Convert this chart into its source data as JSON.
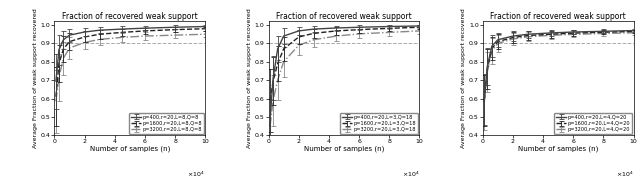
{
  "title": "Fraction of recovered weak support",
  "xlabel": "Number of samples (n)",
  "ylabel": "Average Fraction of weak support recovered",
  "ylim": [
    0.4,
    1.02
  ],
  "xlim": [
    0,
    100000.0
  ],
  "hline": 0.9,
  "xticks": [
    0,
    20000,
    40000,
    60000,
    80000,
    100000
  ],
  "yticks": [
    0.4,
    0.5,
    0.6,
    0.7,
    0.8,
    0.9,
    1.0
  ],
  "subplots": [
    {
      "legend": [
        "p=400,r=20,L=8,Q=8",
        "p=1600,r=20,L=8,Q=8",
        "p=3200,r=20,L=8,Q=8"
      ],
      "x": [
        1000,
        3000,
        6000,
        10000,
        20000,
        30000,
        45000,
        60000,
        80000,
        100000
      ],
      "curves": [
        {
          "y": [
            0.695,
            0.865,
            0.92,
            0.945,
            0.962,
            0.972,
            0.978,
            0.983,
            0.988,
            0.992
          ],
          "yerr": [
            0.15,
            0.08,
            0.05,
            0.035,
            0.022,
            0.018,
            0.015,
            0.012,
            0.01,
            0.009
          ],
          "style": "-",
          "color": "#444444",
          "lw": 1.0
        },
        {
          "y": [
            0.61,
            0.79,
            0.87,
            0.91,
            0.935,
            0.95,
            0.96,
            0.968,
            0.975,
            0.98
          ],
          "yerr": [
            0.16,
            0.1,
            0.07,
            0.048,
            0.03,
            0.024,
            0.02,
            0.016,
            0.013,
            0.011
          ],
          "style": "--",
          "color": "#222222",
          "lw": 1.0
        },
        {
          "y": [
            0.585,
            0.715,
            0.82,
            0.875,
            0.905,
            0.922,
            0.933,
            0.94,
            0.945,
            0.95
          ],
          "yerr": [
            0.17,
            0.13,
            0.09,
            0.058,
            0.038,
            0.03,
            0.024,
            0.02,
            0.017,
            0.015
          ],
          "style": "-.",
          "color": "#888888",
          "lw": 1.0
        }
      ]
    },
    {
      "legend": [
        "p=400,r=20,L=3,Q=18",
        "p=1600,r=20,L=3,Q=18",
        "p=3200,r=20,L=3,Q=18"
      ],
      "x": [
        1000,
        3000,
        6000,
        10000,
        20000,
        30000,
        45000,
        60000,
        80000,
        100000
      ],
      "curves": [
        {
          "y": [
            0.49,
            0.71,
            0.87,
            0.94,
            0.968,
            0.978,
            0.984,
            0.988,
            0.992,
            0.995
          ],
          "yerr": [
            0.16,
            0.12,
            0.07,
            0.045,
            0.022,
            0.016,
            0.013,
            0.01,
            0.009,
            0.007
          ],
          "style": "-",
          "color": "#444444",
          "lw": 1.0
        },
        {
          "y": [
            0.59,
            0.695,
            0.79,
            0.87,
            0.935,
            0.955,
            0.968,
            0.975,
            0.982,
            0.988
          ],
          "yerr": [
            0.17,
            0.13,
            0.095,
            0.065,
            0.038,
            0.026,
            0.02,
            0.016,
            0.013,
            0.011
          ],
          "style": "--",
          "color": "#222222",
          "lw": 1.0
        },
        {
          "y": [
            0.45,
            0.59,
            0.7,
            0.8,
            0.89,
            0.92,
            0.94,
            0.952,
            0.96,
            0.968
          ],
          "yerr": [
            0.15,
            0.14,
            0.11,
            0.082,
            0.055,
            0.038,
            0.028,
            0.022,
            0.018,
            0.015
          ],
          "style": "-.",
          "color": "#888888",
          "lw": 1.0
        }
      ]
    },
    {
      "legend": [
        "p=400,r=20,L=4,Q=20",
        "p=1600,r=20,L=4,Q=20",
        "p=3200,r=20,L=4,Q=20"
      ],
      "x": [
        1000,
        3000,
        6000,
        10000,
        20000,
        30000,
        45000,
        60000,
        80000,
        100000
      ],
      "curves": [
        {
          "y": [
            0.595,
            0.775,
            0.885,
            0.92,
            0.94,
            0.95,
            0.957,
            0.962,
            0.966,
            0.97
          ],
          "yerr": [
            0.14,
            0.1,
            0.06,
            0.038,
            0.025,
            0.02,
            0.016,
            0.013,
            0.011,
            0.009
          ],
          "style": "-",
          "color": "#444444",
          "lw": 1.0
        },
        {
          "y": [
            0.59,
            0.76,
            0.872,
            0.91,
            0.932,
            0.943,
            0.95,
            0.956,
            0.961,
            0.965
          ],
          "yerr": [
            0.14,
            0.11,
            0.065,
            0.042,
            0.028,
            0.022,
            0.018,
            0.015,
            0.012,
            0.01
          ],
          "style": "--",
          "color": "#222222",
          "lw": 1.0
        },
        {
          "y": [
            0.58,
            0.745,
            0.858,
            0.9,
            0.924,
            0.936,
            0.944,
            0.949,
            0.954,
            0.958
          ],
          "yerr": [
            0.15,
            0.11,
            0.07,
            0.046,
            0.031,
            0.024,
            0.019,
            0.016,
            0.013,
            0.011
          ],
          "style": "-.",
          "color": "#888888",
          "lw": 1.0
        }
      ]
    }
  ]
}
